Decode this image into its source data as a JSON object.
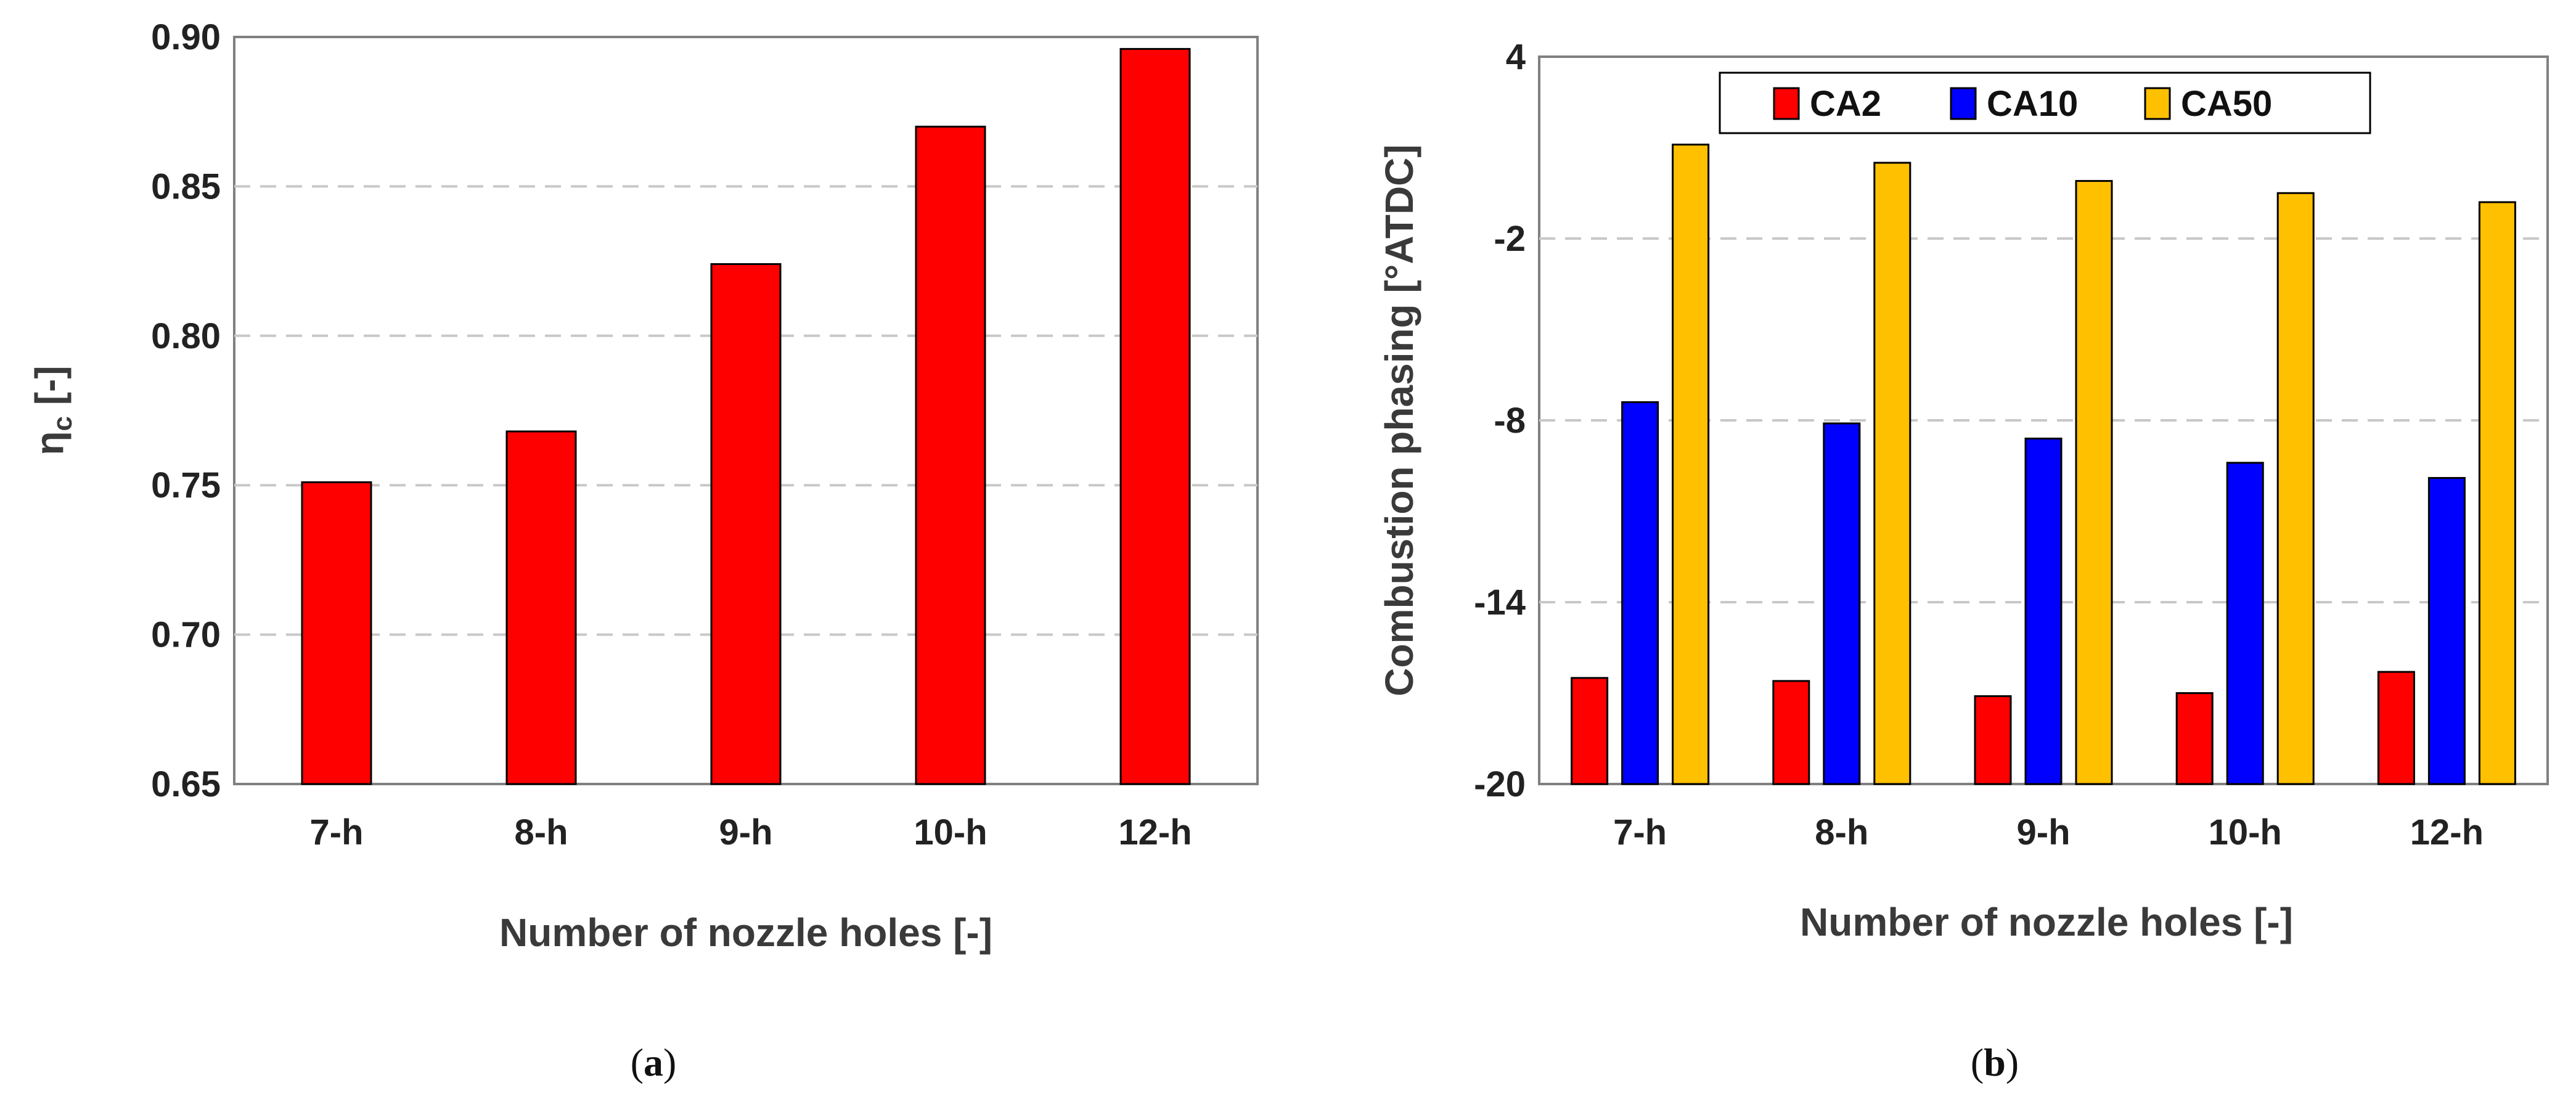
{
  "chart_data": [
    {
      "type": "bar",
      "panel_label": "a",
      "title": "",
      "categories": [
        "7-h",
        "8-h",
        "9-h",
        "10-h",
        "12-h"
      ],
      "series": [
        {
          "name": "ηc",
          "color": "#ff0000",
          "values": [
            0.751,
            0.768,
            0.824,
            0.87,
            0.896
          ]
        }
      ],
      "xlabel": "Number of nozzle holes [-]",
      "ylabel_main": "η",
      "ylabel_sub": "c",
      "ylabel_unit": " [-]",
      "ylim": [
        0.65,
        0.9
      ],
      "yticks": [
        "0.65",
        "0.70",
        "0.75",
        "0.80",
        "0.85",
        "0.90"
      ],
      "grid": true,
      "legend": null
    },
    {
      "type": "bar",
      "panel_label": "b",
      "title": "",
      "categories": [
        "7-h",
        "8-h",
        "9-h",
        "10-h",
        "12-h"
      ],
      "series": [
        {
          "name": "CA2",
          "color": "#ff0000",
          "values": [
            -16.5,
            -16.6,
            -17.1,
            -17.0,
            -16.3
          ]
        },
        {
          "name": "CA10",
          "color": "#0000ff",
          "values": [
            -7.4,
            -8.1,
            -8.6,
            -9.4,
            -9.9
          ]
        },
        {
          "name": "CA50",
          "color": "#ffc000",
          "values": [
            1.1,
            0.5,
            -0.1,
            -0.5,
            -0.8
          ]
        }
      ],
      "xlabel": "Number of nozzle holes [-]",
      "ylabel": "Combustion phasing [°ATDC]",
      "ylim": [
        -20,
        4
      ],
      "yticks": [
        "-20",
        "-14",
        "-8",
        "-2",
        "4"
      ],
      "grid": true,
      "legend_position": "top"
    }
  ]
}
